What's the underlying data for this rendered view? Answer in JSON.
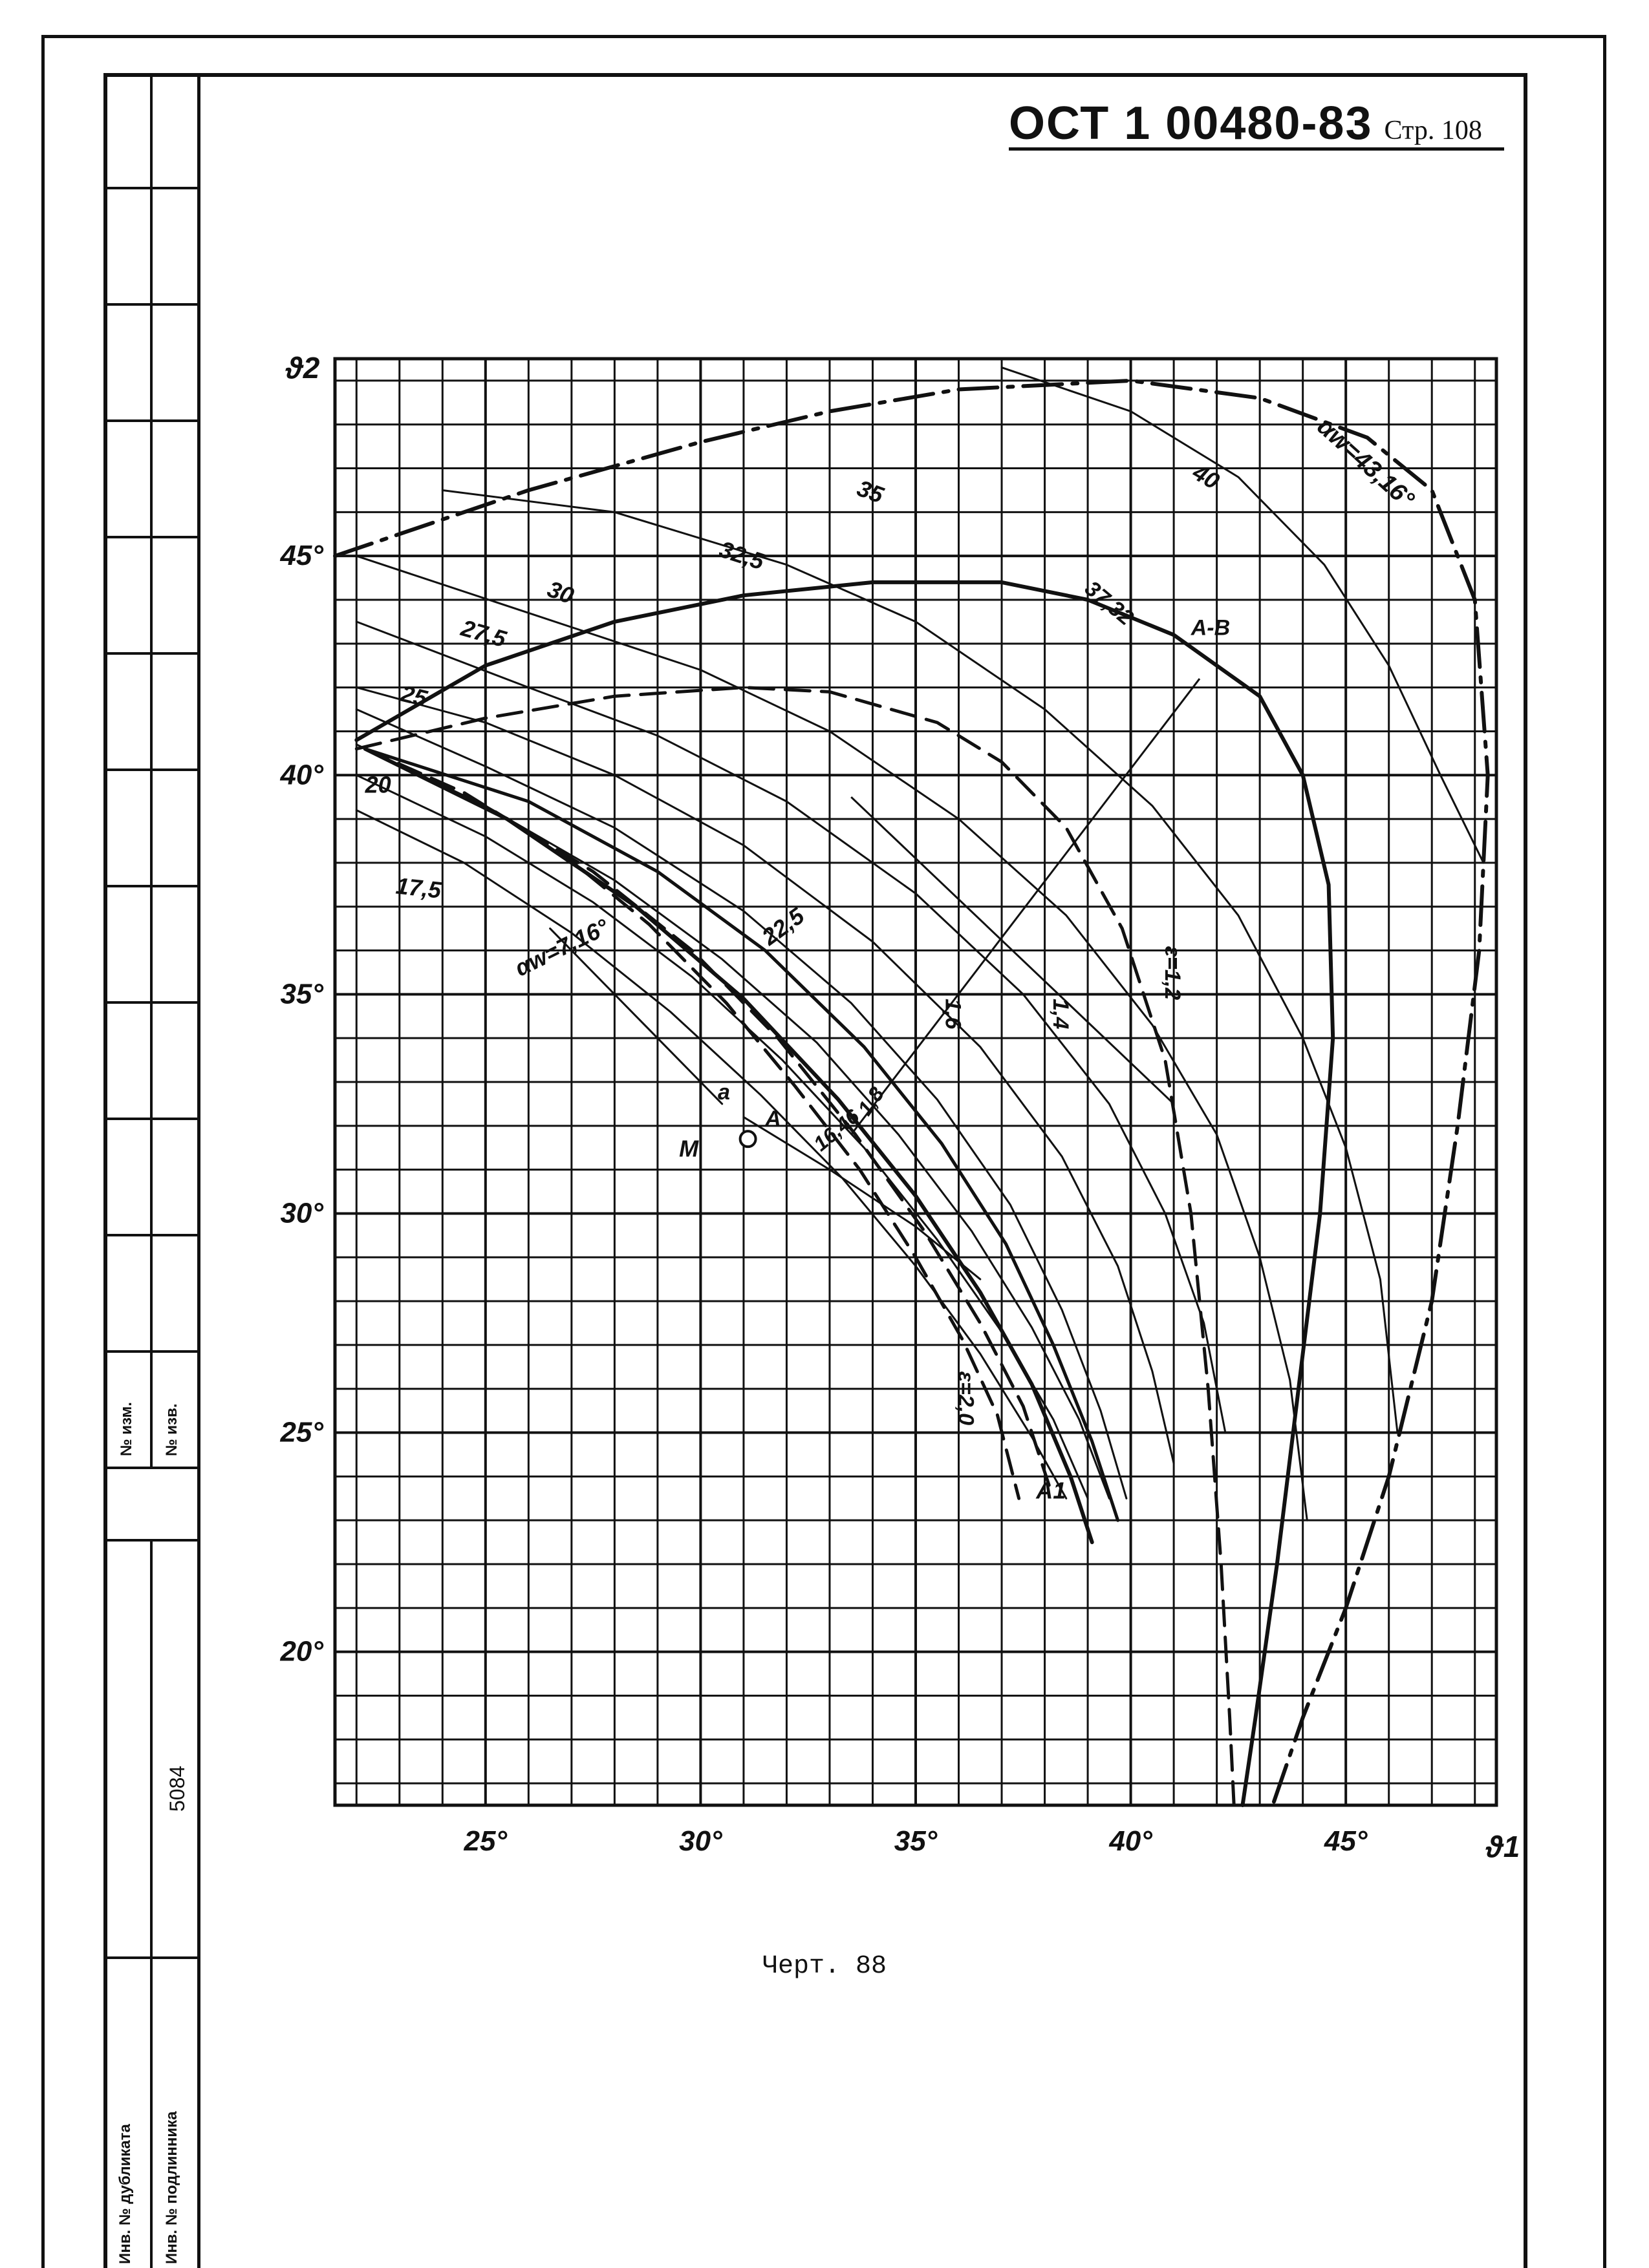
{
  "header": {
    "standard": "ОСТ 1 00480-83",
    "page": "Стр. 108"
  },
  "caption": "Черт. 88",
  "stamp": {
    "number": "5084",
    "label_left_top": "№ изм.",
    "label_right_top": "№ изв.",
    "label_bottom_1": "Инв. № дубликата",
    "label_bottom_2": "Инв. № подлинника"
  },
  "chart_data": {
    "type": "line",
    "xlabel": "ϑ1",
    "ylabel": "ϑ2",
    "xlim": [
      21.5,
      48.5
    ],
    "ylim": [
      16.5,
      49.5
    ],
    "grid": true,
    "x_ticks": [
      {
        "value": 25,
        "label": "25°"
      },
      {
        "value": 30,
        "label": "30°"
      },
      {
        "value": 35,
        "label": "35°"
      },
      {
        "value": 40,
        "label": "40°"
      },
      {
        "value": 45,
        "label": "45°"
      }
    ],
    "y_ticks": [
      {
        "value": 20,
        "label": "20°"
      },
      {
        "value": 25,
        "label": "25°"
      },
      {
        "value": 30,
        "label": "30°"
      },
      {
        "value": 35,
        "label": "35°"
      },
      {
        "value": 40,
        "label": "40°"
      },
      {
        "value": 45,
        "label": "45°"
      }
    ],
    "series": [
      {
        "name": "αw=43,16°",
        "style": "dash-dot",
        "weight": 6,
        "points": [
          [
            21.5,
            45.0
          ],
          [
            26,
            46.5
          ],
          [
            30,
            47.6
          ],
          [
            33,
            48.3
          ],
          [
            36,
            48.8
          ],
          [
            40,
            49.0
          ],
          [
            43,
            48.6
          ],
          [
            45.5,
            47.7
          ],
          [
            47,
            46.5
          ],
          [
            48,
            44.0
          ],
          [
            48.3,
            40.0
          ],
          [
            48.1,
            36.0
          ],
          [
            47.6,
            32.0
          ],
          [
            47.0,
            28.0
          ],
          [
            46.0,
            24.0
          ],
          [
            45.0,
            21.0
          ],
          [
            44.0,
            18.5
          ],
          [
            43.3,
            16.5
          ]
        ]
      },
      {
        "name": "37,32",
        "style": "solid",
        "weight": 6,
        "points": [
          [
            22.0,
            40.8
          ],
          [
            25,
            42.5
          ],
          [
            28,
            43.5
          ],
          [
            31,
            44.1
          ],
          [
            34,
            44.4
          ],
          [
            37,
            44.4
          ],
          [
            39,
            44.0
          ],
          [
            41,
            43.2
          ],
          [
            43,
            41.8
          ],
          [
            44,
            40.0
          ],
          [
            44.6,
            37.5
          ],
          [
            44.7,
            34.0
          ],
          [
            44.4,
            30.0
          ],
          [
            43.9,
            26.0
          ],
          [
            43.4,
            22.0
          ],
          [
            42.9,
            18.5
          ],
          [
            42.6,
            16.5
          ]
        ]
      },
      {
        "name": "ε=1,2",
        "style": "dashed",
        "weight": 5,
        "points": [
          [
            22.0,
            40.6
          ],
          [
            25,
            41.3
          ],
          [
            28,
            41.8
          ],
          [
            31,
            42.0
          ],
          [
            33,
            41.9
          ],
          [
            35.5,
            41.2
          ],
          [
            37,
            40.3
          ],
          [
            38.5,
            38.8
          ],
          [
            39.8,
            36.5
          ],
          [
            40.8,
            33.5
          ],
          [
            41.4,
            30.0
          ],
          [
            41.8,
            26.0
          ],
          [
            42.1,
            22.0
          ],
          [
            42.3,
            18.5
          ],
          [
            42.4,
            16.5
          ]
        ]
      },
      {
        "name": "40",
        "style": "solid",
        "weight": 3,
        "points": [
          [
            37,
            49.3
          ],
          [
            40,
            48.3
          ],
          [
            42.5,
            46.8
          ],
          [
            44.5,
            44.8
          ],
          [
            46,
            42.5
          ],
          [
            47.2,
            40.0
          ],
          [
            48.2,
            38.0
          ]
        ]
      },
      {
        "name": "35",
        "style": "solid",
        "weight": 3,
        "points": [
          [
            24,
            46.5
          ],
          [
            28,
            46.0
          ],
          [
            32,
            44.8
          ],
          [
            35,
            43.5
          ],
          [
            38,
            41.5
          ],
          [
            40.5,
            39.3
          ],
          [
            42.5,
            36.8
          ],
          [
            44,
            34.0
          ],
          [
            45,
            31.5
          ],
          [
            45.8,
            28.5
          ],
          [
            46.2,
            25.0
          ]
        ]
      },
      {
        "name": "32,5",
        "style": "solid",
        "weight": 3,
        "points": [
          [
            22,
            45.0
          ],
          [
            26,
            43.7
          ],
          [
            30,
            42.4
          ],
          [
            33,
            41.0
          ],
          [
            36,
            39.0
          ],
          [
            38.5,
            36.8
          ],
          [
            40.5,
            34.3
          ],
          [
            42,
            31.8
          ],
          [
            43,
            29.0
          ],
          [
            43.7,
            26.2
          ],
          [
            44.1,
            23.0
          ]
        ]
      },
      {
        "name": "30",
        "style": "solid",
        "weight": 3,
        "points": [
          [
            22,
            43.5
          ],
          [
            26,
            42.0
          ],
          [
            29,
            40.9
          ],
          [
            32,
            39.4
          ],
          [
            35,
            37.3
          ],
          [
            37.5,
            35.0
          ],
          [
            39.5,
            32.5
          ],
          [
            40.8,
            30.0
          ],
          [
            41.7,
            27.5
          ],
          [
            42.2,
            25.0
          ]
        ]
      },
      {
        "name": "27,5",
        "style": "solid",
        "weight": 3,
        "points": [
          [
            22,
            42.0
          ],
          [
            25,
            41.2
          ],
          [
            28,
            40.0
          ],
          [
            31,
            38.4
          ],
          [
            34,
            36.2
          ],
          [
            36.5,
            33.8
          ],
          [
            38.4,
            31.3
          ],
          [
            39.7,
            28.8
          ],
          [
            40.5,
            26.4
          ],
          [
            41.0,
            24.3
          ]
        ]
      },
      {
        "name": "25",
        "style": "solid",
        "weight": 3,
        "points": [
          [
            22,
            41.5
          ],
          [
            25,
            40.2
          ],
          [
            28,
            38.8
          ],
          [
            31,
            36.9
          ],
          [
            33.5,
            34.8
          ],
          [
            35.5,
            32.6
          ],
          [
            37.2,
            30.2
          ],
          [
            38.4,
            27.8
          ],
          [
            39.3,
            25.5
          ],
          [
            39.9,
            23.5
          ]
        ]
      },
      {
        "name": "22,5",
        "style": "solid",
        "weight": 3,
        "points": [
          [
            22,
            40.7
          ],
          [
            25,
            39.3
          ],
          [
            28,
            37.6
          ],
          [
            30.5,
            35.8
          ],
          [
            32.7,
            33.9
          ],
          [
            34.6,
            31.8
          ],
          [
            36.3,
            29.6
          ],
          [
            37.7,
            27.4
          ],
          [
            38.8,
            25.3
          ],
          [
            39.5,
            23.5
          ]
        ]
      },
      {
        "name": "20",
        "style": "solid",
        "weight": 3,
        "points": [
          [
            22,
            40.0
          ],
          [
            25,
            38.6
          ],
          [
            27.5,
            37.1
          ],
          [
            29.8,
            35.4
          ],
          [
            31.9,
            33.5
          ],
          [
            33.8,
            31.5
          ],
          [
            35.5,
            29.4
          ],
          [
            37,
            27.3
          ],
          [
            38.2,
            25.3
          ],
          [
            39.0,
            23.5
          ]
        ]
      },
      {
        "name": "17,5",
        "style": "solid",
        "weight": 3,
        "points": [
          [
            22,
            39.2
          ],
          [
            24.5,
            38.0
          ],
          [
            27,
            36.4
          ],
          [
            29.3,
            34.6
          ],
          [
            31.4,
            32.7
          ],
          [
            33.3,
            30.8
          ],
          [
            35,
            28.8
          ],
          [
            36.5,
            26.8
          ],
          [
            37.7,
            24.9
          ],
          [
            38.5,
            23.5
          ]
        ]
      },
      {
        "name": "αw=7,16°",
        "style": "solid",
        "weight": 3,
        "points": [
          [
            26.5,
            36.5
          ],
          [
            28.5,
            34.5
          ],
          [
            30.5,
            32.5
          ]
        ]
      },
      {
        "name": "16,46",
        "style": "solid",
        "weight": 3,
        "points": [
          [
            31.0,
            32.2
          ],
          [
            33,
            31.0
          ],
          [
            35,
            29.7
          ],
          [
            36.5,
            28.5
          ]
        ]
      },
      {
        "name": "1,4",
        "style": "solid",
        "weight": 5,
        "points": [
          [
            22.2,
            40.6
          ],
          [
            26,
            39.4
          ],
          [
            29,
            37.8
          ],
          [
            31.5,
            36.0
          ],
          [
            33.8,
            33.8
          ],
          [
            35.6,
            31.6
          ],
          [
            37.1,
            29.3
          ],
          [
            38.2,
            27.0
          ],
          [
            39.1,
            24.8
          ],
          [
            39.7,
            23.0
          ]
        ]
      },
      {
        "name": "1,6",
        "style": "solid",
        "weight": 6,
        "points": [
          [
            22.2,
            40.6
          ],
          [
            25.5,
            39.0
          ],
          [
            28.5,
            37.0
          ],
          [
            31,
            34.9
          ],
          [
            33.2,
            32.6
          ],
          [
            35.0,
            30.4
          ],
          [
            36.5,
            28.2
          ],
          [
            37.7,
            26.1
          ],
          [
            38.6,
            24.0
          ],
          [
            39.1,
            22.5
          ]
        ]
      },
      {
        "name": "1,8",
        "style": "dashed",
        "weight": 5,
        "points": [
          [
            22.2,
            40.6
          ],
          [
            25,
            39.3
          ],
          [
            27.5,
            37.8
          ],
          [
            29.8,
            36.0
          ],
          [
            31.8,
            34.0
          ],
          [
            33.6,
            31.8
          ],
          [
            35.2,
            29.6
          ],
          [
            36.5,
            27.5
          ],
          [
            37.5,
            25.6
          ],
          [
            38.1,
            23.8
          ]
        ]
      },
      {
        "name": "ε=2,0",
        "style": "dashed",
        "weight": 5,
        "points": [
          [
            22.2,
            40.6
          ],
          [
            24.5,
            39.6
          ],
          [
            26.8,
            38.2
          ],
          [
            28.8,
            36.6
          ],
          [
            30.6,
            34.8
          ],
          [
            32.2,
            32.9
          ],
          [
            33.7,
            31.0
          ],
          [
            35.0,
            29.0
          ],
          [
            36.1,
            27.1
          ],
          [
            36.9,
            25.4
          ],
          [
            37.4,
            23.5
          ]
        ]
      }
    ],
    "annotations": [
      {
        "text": "αw=43,16°",
        "x": 44.3,
        "y": 47.9,
        "angle": 42,
        "size": 38
      },
      {
        "text": "40",
        "x": 41.4,
        "y": 46.8,
        "angle": 30,
        "size": 36
      },
      {
        "text": "37,32",
        "x": 38.9,
        "y": 44.2,
        "angle": 40,
        "size": 34
      },
      {
        "text": "A-B",
        "x": 41.4,
        "y": 43.2,
        "angle": 0,
        "size": 34
      },
      {
        "text": "35",
        "x": 33.6,
        "y": 46.4,
        "angle": 20,
        "size": 36
      },
      {
        "text": "32,5",
        "x": 30.4,
        "y": 45.0,
        "angle": 18,
        "size": 36
      },
      {
        "text": "30",
        "x": 26.4,
        "y": 44.1,
        "angle": 20,
        "size": 36
      },
      {
        "text": "27,5",
        "x": 24.4,
        "y": 43.2,
        "angle": 16,
        "size": 36
      },
      {
        "text": "25",
        "x": 23.0,
        "y": 41.7,
        "angle": 14,
        "size": 36
      },
      {
        "text": "20",
        "x": 22.2,
        "y": 39.6,
        "angle": 0,
        "size": 36
      },
      {
        "text": "17,5",
        "x": 22.9,
        "y": 37.3,
        "angle": 6,
        "size": 36
      },
      {
        "text": "22,5",
        "x": 31.6,
        "y": 36.1,
        "angle": -36,
        "size": 36
      },
      {
        "text": "1,6",
        "x": 35.7,
        "y": 34.9,
        "angle": 90,
        "size": 34
      },
      {
        "text": "1,4",
        "x": 38.2,
        "y": 34.9,
        "angle": 90,
        "size": 34
      },
      {
        "text": "ε=1,2",
        "x": 40.8,
        "y": 36.1,
        "angle": 90,
        "size": 34
      },
      {
        "text": "αw=7,16°",
        "x": 25.8,
        "y": 35.4,
        "angle": -26,
        "size": 36
      },
      {
        "text": "a",
        "x": 30.4,
        "y": 32.6,
        "angle": 0,
        "size": 34
      },
      {
        "text": "A",
        "x": 31.5,
        "y": 32.0,
        "angle": 0,
        "size": 34
      },
      {
        "text": "M",
        "x": 29.5,
        "y": 31.3,
        "angle": 0,
        "size": 36
      },
      {
        "text": "1,8",
        "x": 33.9,
        "y": 32.2,
        "angle": -55,
        "size": 32
      },
      {
        "text": "16,46",
        "x": 32.8,
        "y": 31.4,
        "angle": -40,
        "size": 32
      },
      {
        "text": "ε=2,0",
        "x": 36.0,
        "y": 26.4,
        "angle": 90,
        "size": 34
      },
      {
        "text": "A1",
        "x": 37.8,
        "y": 23.5,
        "angle": 0,
        "size": 36
      }
    ],
    "points": [
      {
        "name": "M",
        "x": 31.1,
        "y": 31.7
      }
    ]
  }
}
